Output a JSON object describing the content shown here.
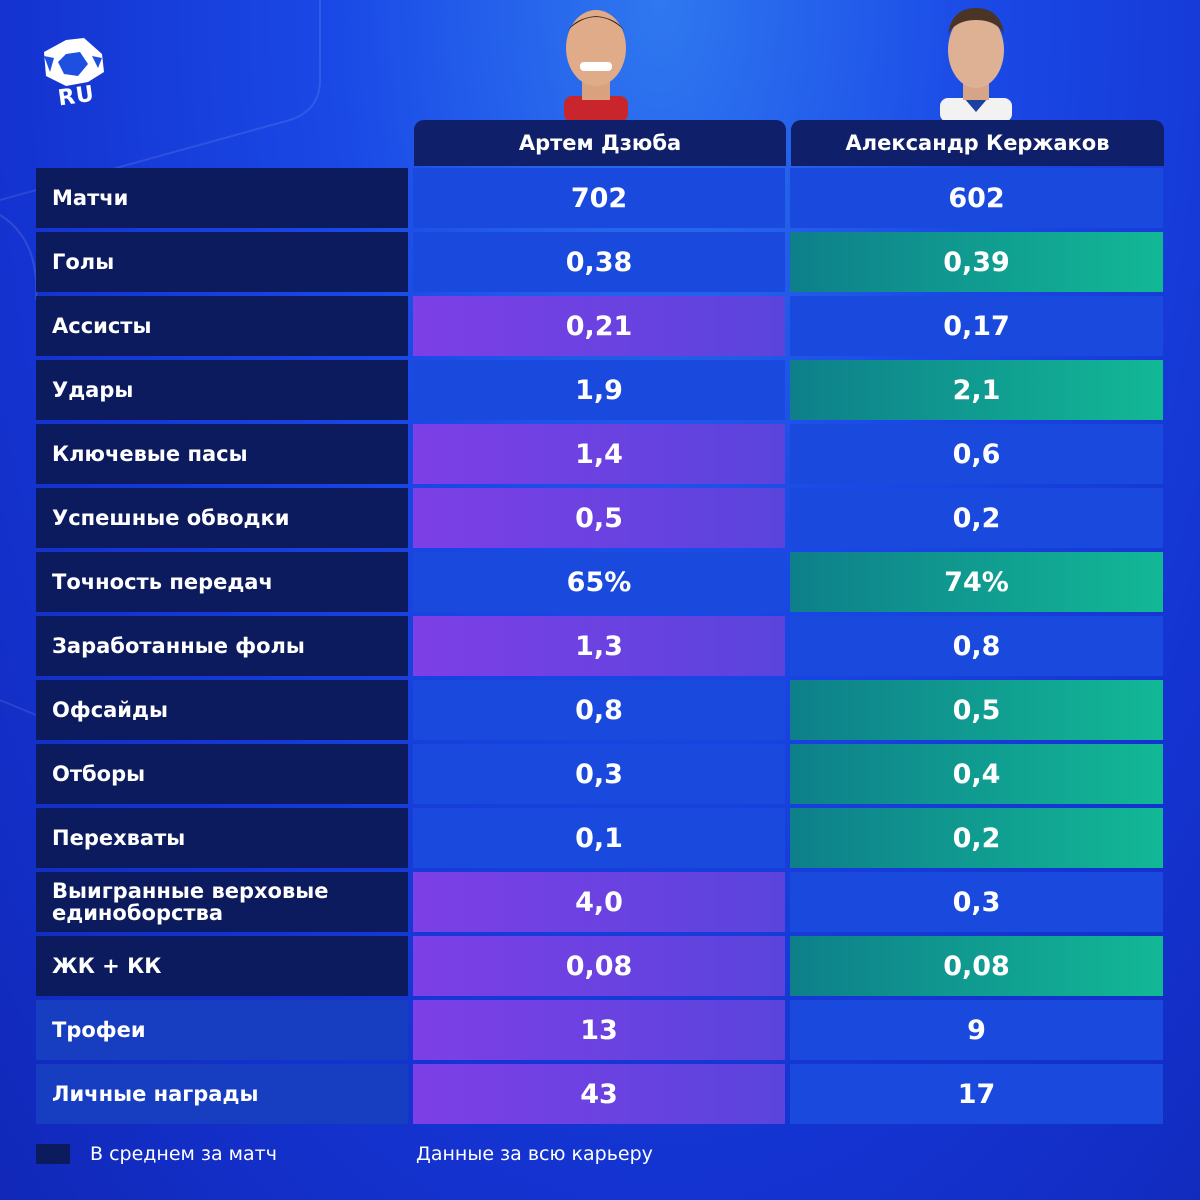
{
  "brand": {
    "logo_text": "RU"
  },
  "players": [
    {
      "name": "Артем Дзюба"
    },
    {
      "name": "Александр Кержаков"
    }
  ],
  "colors": {
    "label_dark": "#0c1b5e",
    "cell_default": "#1a49de",
    "best_player1": "#7d3fe6",
    "best_player2": "#12b896"
  },
  "rows": [
    {
      "label": "Матчи",
      "p1": "702",
      "p2": "602",
      "best": "none",
      "career": false
    },
    {
      "label": "Голы",
      "p1": "0,38",
      "p2": "0,39",
      "best": "p2",
      "career": false
    },
    {
      "label": "Ассисты",
      "p1": "0,21",
      "p2": "0,17",
      "best": "p1",
      "career": false
    },
    {
      "label": "Удары",
      "p1": "1,9",
      "p2": "2,1",
      "best": "p2",
      "career": false
    },
    {
      "label": "Ключевые пасы",
      "p1": "1,4",
      "p2": "0,6",
      "best": "p1",
      "career": false
    },
    {
      "label": "Успешные обводки",
      "p1": "0,5",
      "p2": "0,2",
      "best": "p1",
      "career": false
    },
    {
      "label": "Точность передач",
      "p1": "65%",
      "p2": "74%",
      "best": "p2",
      "career": false
    },
    {
      "label": "Заработанные фолы",
      "p1": "1,3",
      "p2": "0,8",
      "best": "p1",
      "career": false
    },
    {
      "label": "Офсайды",
      "p1": "0,8",
      "p2": "0,5",
      "best": "p2",
      "career": false
    },
    {
      "label": "Отборы",
      "p1": "0,3",
      "p2": "0,4",
      "best": "p2",
      "career": false
    },
    {
      "label": "Перехваты",
      "p1": "0,1",
      "p2": "0,2",
      "best": "p2",
      "career": false
    },
    {
      "label": "Выигранные верховые единоборства",
      "p1": "4,0",
      "p2": "0,3",
      "best": "p1",
      "career": false
    },
    {
      "label": "ЖК + КК",
      "p1": "0,08",
      "p2": "0,08",
      "best": "both",
      "career": false
    },
    {
      "label": "Трофеи",
      "p1": "13",
      "p2": "9",
      "best": "p1",
      "career": true
    },
    {
      "label": "Личные награды",
      "p1": "43",
      "p2": "17",
      "best": "p1",
      "career": true
    }
  ],
  "legend": {
    "per_match": "В среднем за матч",
    "career": "Данные за всю карьеру"
  }
}
